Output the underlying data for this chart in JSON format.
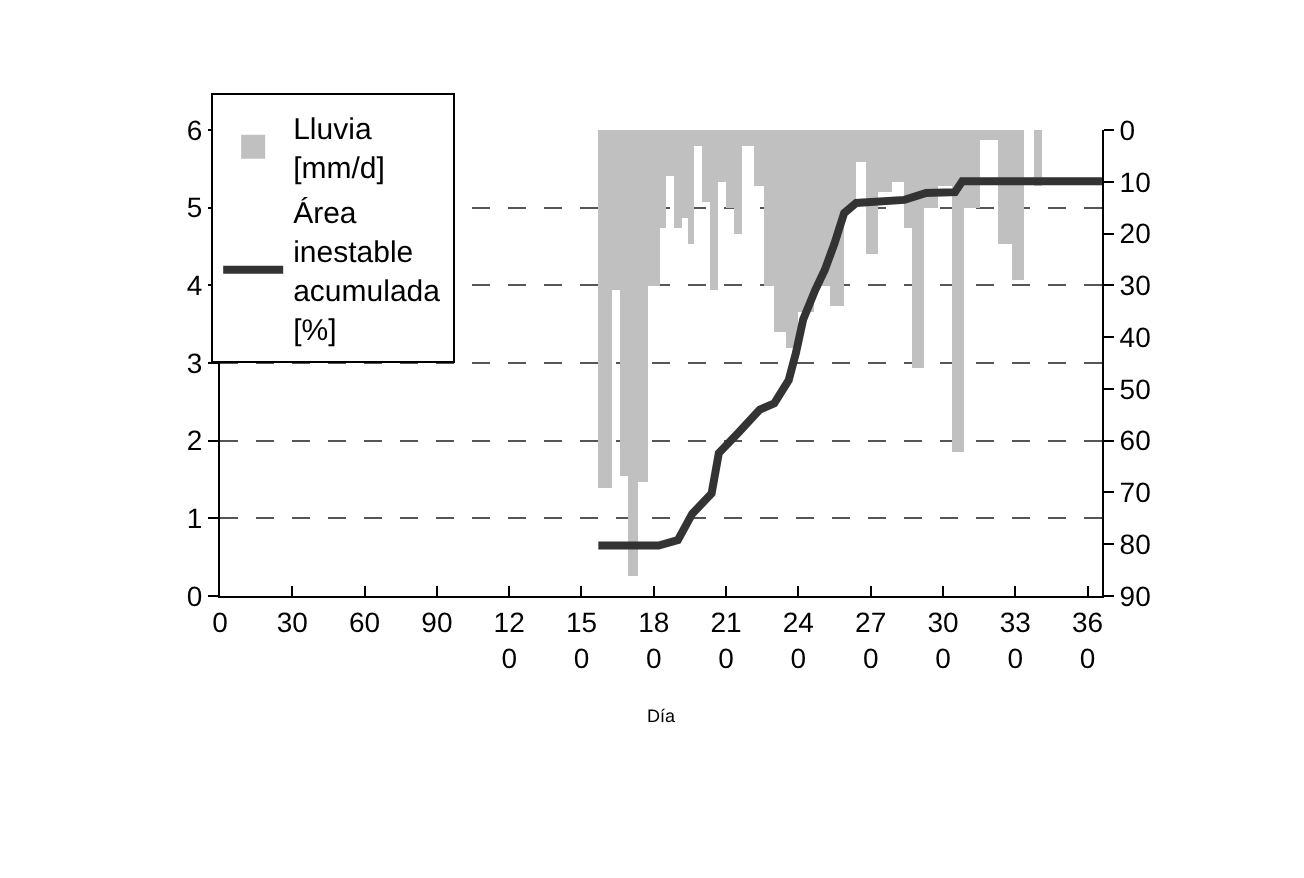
{
  "chart_data": {
    "type": "line",
    "xlabel": "Día",
    "xlim": [
      0,
      366
    ],
    "xticks": [
      0,
      30,
      60,
      90,
      120,
      150,
      180,
      210,
      240,
      270,
      300,
      330,
      360
    ],
    "ylim": [
      0,
      6
    ],
    "yticks": [
      0,
      1,
      2,
      3,
      4,
      5,
      6
    ],
    "y2lim": [
      90,
      0
    ],
    "y2ticks": [
      0,
      10,
      20,
      30,
      40,
      50,
      60,
      70,
      80,
      90
    ],
    "grid": "y",
    "legend": "top left",
    "series": [
      {
        "name": "Lluvia [mm/d]",
        "type": "bar",
        "axis": "y2",
        "color": "#c0c0c0",
        "x": [
          158,
          161,
          165,
          167.5,
          171,
          175.5,
          180.5,
          184,
          186,
          190,
          193,
          195.5,
          198.5,
          201.5,
          205,
          208.5,
          211.5,
          215,
          219,
          223.5,
          228,
          232.5,
          237,
          242.5,
          250,
          257,
          261.5,
          265.5,
          270.5,
          276,
          282,
          286,
          289,
          294.5,
          301,
          306,
          311.5,
          319,
          326,
          331.5,
          335.5,
          339.5,
          343
        ],
        "values": [
          69,
          69,
          31,
          67,
          86,
          68,
          30,
          19,
          9,
          19,
          17,
          22,
          3,
          14,
          31,
          10,
          15,
          20,
          3,
          11,
          30,
          39,
          42,
          35,
          30,
          34,
          15,
          6,
          24,
          12,
          10,
          19,
          46,
          15,
          11,
          62,
          15,
          2,
          22,
          29,
          0,
          11,
          0
        ]
      },
      {
        "name": "Área inestable acumulada [%]",
        "color": "#333333",
        "line_style": "solid",
        "x": [
          157,
          182,
          190,
          196,
          204,
          207,
          215,
          224,
          230,
          236,
          239,
          242,
          247,
          251,
          255,
          259,
          264,
          284,
          293,
          305,
          308,
          366
        ],
        "values": [
          0.65,
          0.65,
          0.72,
          1.06,
          1.32,
          1.84,
          2.1,
          2.4,
          2.48,
          2.78,
          3.13,
          3.56,
          3.94,
          4.2,
          4.54,
          4.93,
          5.06,
          5.1,
          5.19,
          5.2,
          5.34,
          5.34
        ]
      }
    ]
  }
}
